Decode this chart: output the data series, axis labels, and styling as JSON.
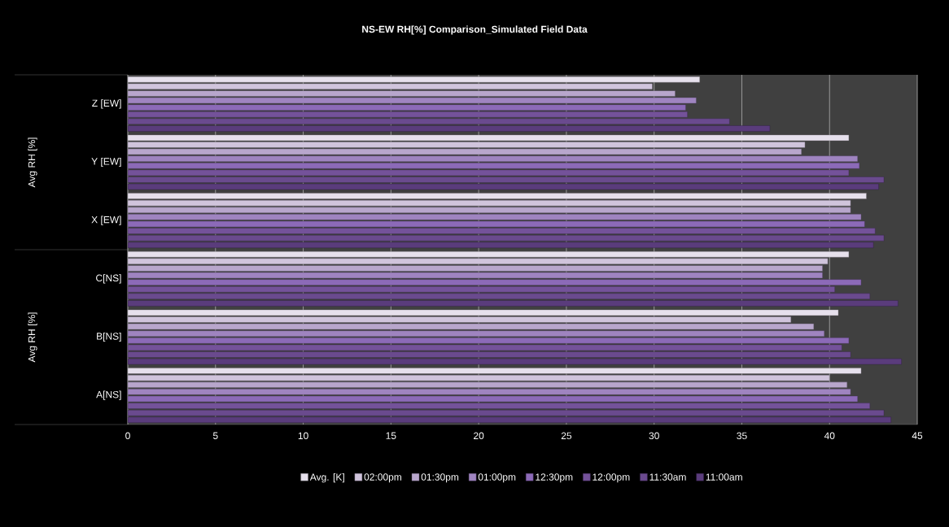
{
  "chart_data": {
    "type": "bar",
    "orientation": "horizontal",
    "title": "NS-EW RH[%] Comparison_Simulated Field Data",
    "categories": [
      "Z [EW]",
      "Y [EW]",
      "X [EW]",
      "C[NS]",
      "B[NS]",
      "A[NS]"
    ],
    "series": [
      {
        "name": "Avg. [K]",
        "color": "#e6e0ec",
        "values": [
          32.6,
          41.1,
          42.1,
          41.1,
          40.5,
          41.8
        ]
      },
      {
        "name": "02:00pm",
        "color": "#d0c4dc",
        "values": [
          29.9,
          38.6,
          41.2,
          39.9,
          37.8,
          40.0
        ]
      },
      {
        "name": "01:30pm",
        "color": "#b8a6cc",
        "values": [
          31.2,
          38.4,
          41.2,
          39.6,
          39.1,
          41.0
        ]
      },
      {
        "name": "01:00pm",
        "color": "#9f84c0",
        "values": [
          32.4,
          41.6,
          41.8,
          39.6,
          39.7,
          41.2
        ]
      },
      {
        "name": "12:30pm",
        "color": "#8c6ab8",
        "values": [
          31.8,
          41.7,
          42.0,
          41.8,
          41.1,
          41.6
        ]
      },
      {
        "name": "12:00pm",
        "color": "#74529a",
        "values": [
          31.9,
          41.1,
          42.6,
          40.3,
          40.7,
          42.3
        ]
      },
      {
        "name": "11:30am",
        "color": "#6a4a8e",
        "values": [
          34.3,
          43.1,
          43.1,
          42.3,
          41.2,
          43.1
        ]
      },
      {
        "name": "11:00am",
        "color": "#5a3c7c",
        "values": [
          36.6,
          42.8,
          42.5,
          43.9,
          44.1,
          43.5
        ]
      }
    ],
    "xlim": [
      0,
      45
    ],
    "xticks": [
      0,
      5,
      10,
      15,
      20,
      25,
      30,
      35,
      40,
      45
    ],
    "grid": "x",
    "legend": "bottom",
    "annotations": [
      "Avg RH [%]",
      "Avg RH [%]"
    ]
  }
}
